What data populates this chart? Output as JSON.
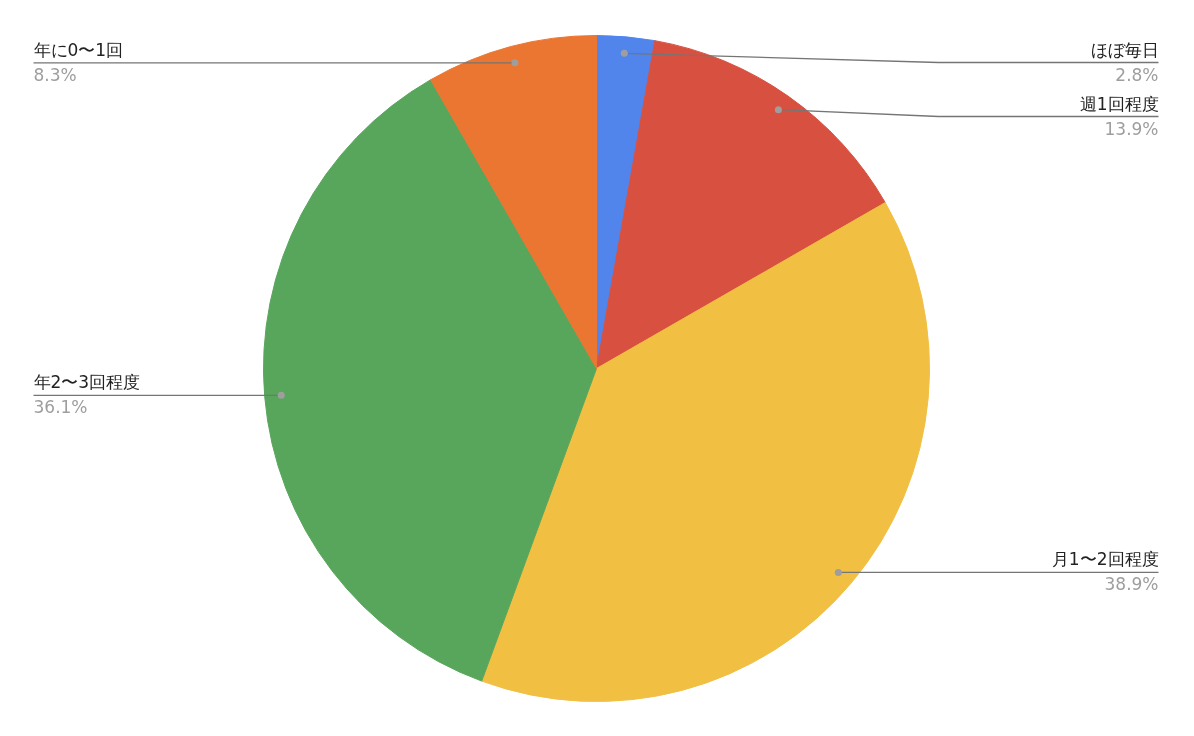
{
  "chart_data": {
    "type": "pie",
    "categories": [
      "ほぼ毎日",
      "週1回程度",
      "月1〜2回程度",
      "年2〜3回程度",
      "年に0〜1回"
    ],
    "values": [
      2.8,
      13.9,
      38.9,
      36.1,
      8.3
    ],
    "value_labels": [
      "2.8%",
      "13.9%",
      "38.9%",
      "36.1%",
      "8.3%"
    ],
    "colors": [
      "#5185ec",
      "#d85140",
      "#f1bf42",
      "#58a65c",
      "#eb7631"
    ]
  }
}
